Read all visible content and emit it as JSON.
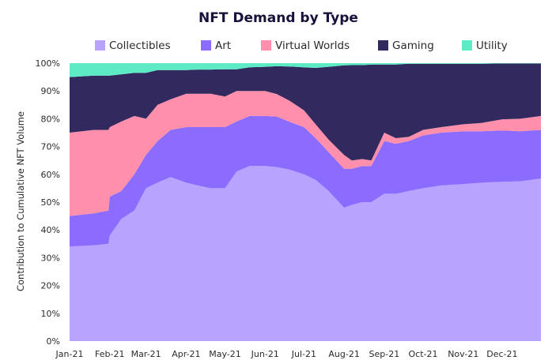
{
  "chart_data": {
    "type": "area",
    "stacked": true,
    "normalized": true,
    "title": "NFT Demand by Type",
    "ylabel": "Contribution to Cumulative NFT Volume",
    "xlabel": "",
    "ylim": [
      0,
      100
    ],
    "y_ticks": [
      "0%",
      "10%",
      "20%",
      "30%",
      "40%",
      "50%",
      "60%",
      "70%",
      "80%",
      "90%",
      "100%"
    ],
    "x_ticks": [
      "Jan-21",
      "Feb-21",
      "Mar-21",
      "Apr-21",
      "May-21",
      "Jun-21",
      "Jul-21",
      "Aug-21",
      "Sep-21",
      "Oct-21",
      "Nov-21",
      "Dec-21"
    ],
    "legend_position": "top",
    "x": [
      "2021-01-01",
      "2021-01-20",
      "2021-01-31",
      "2021-02-01",
      "2021-02-10",
      "2021-02-20",
      "2021-03-01",
      "2021-03-10",
      "2021-03-20",
      "2021-04-01",
      "2021-04-10",
      "2021-04-20",
      "2021-05-01",
      "2021-05-10",
      "2021-05-20",
      "2021-06-01",
      "2021-06-10",
      "2021-06-20",
      "2021-07-01",
      "2021-07-10",
      "2021-07-20",
      "2021-08-01",
      "2021-08-07",
      "2021-08-15",
      "2021-08-22",
      "2021-09-01",
      "2021-09-10",
      "2021-09-20",
      "2021-10-01",
      "2021-10-15",
      "2021-11-01",
      "2021-11-15",
      "2021-12-01",
      "2021-12-15",
      "2021-12-31"
    ],
    "series": [
      {
        "name": "Collectibles",
        "color": "#b8a4ff",
        "values": [
          34,
          34.5,
          35,
          38,
          44,
          47,
          55,
          57,
          59,
          57,
          56,
          55,
          55,
          61,
          63,
          63,
          62,
          61,
          60,
          58,
          54,
          48,
          49,
          50,
          50,
          53,
          53,
          54,
          55,
          56,
          56.5,
          57,
          57.3,
          57.5,
          58.5
        ]
      },
      {
        "name": "Art",
        "color": "#8c6bff",
        "values": [
          11,
          11.5,
          12,
          14,
          10,
          13,
          12,
          15,
          17,
          20,
          21,
          22,
          22,
          18,
          18,
          18,
          18,
          17,
          17,
          15,
          14,
          14,
          13,
          13,
          13,
          19,
          18,
          18,
          19,
          19,
          19,
          18.5,
          18.5,
          18,
          17.5
        ]
      },
      {
        "name": "Virtual Worlds",
        "color": "#ff8fab",
        "values": [
          30,
          30,
          29,
          25,
          25,
          21,
          13,
          13,
          11,
          12,
          12,
          12,
          11,
          11,
          9,
          9,
          8,
          7.5,
          6,
          5,
          4.5,
          5,
          3,
          2.5,
          2,
          3,
          2,
          1.5,
          2,
          2,
          2.5,
          3,
          4,
          4.5,
          5
        ]
      },
      {
        "name": "Gaming",
        "color": "#322a5f",
        "values": [
          20,
          19.5,
          19.5,
          18.5,
          17,
          15.5,
          16.5,
          12.5,
          10.5,
          8.5,
          8.7,
          8.7,
          9.8,
          7.8,
          8.5,
          8.7,
          9.9,
          12.2,
          15.5,
          20.3,
          26.2,
          32.2,
          34.3,
          33.8,
          34.5,
          24.5,
          26.5,
          26.3,
          23.8,
          22.8,
          21.8,
          21.3,
          20.1,
          19.9,
          18.9
        ]
      },
      {
        "name": "Utility",
        "color": "#5cebc4",
        "values": [
          5,
          4.5,
          4.5,
          4.5,
          4,
          3.5,
          3.5,
          2.5,
          2.5,
          2.5,
          2.3,
          2.3,
          2.2,
          2.2,
          1.5,
          1.3,
          1.1,
          1.2,
          1.5,
          1.7,
          1.3,
          0.8,
          0.7,
          0.7,
          0.5,
          0.5,
          0.5,
          0.2,
          0.2,
          0.2,
          0.2,
          0.2,
          0.1,
          0.1,
          0.1
        ]
      }
    ]
  }
}
